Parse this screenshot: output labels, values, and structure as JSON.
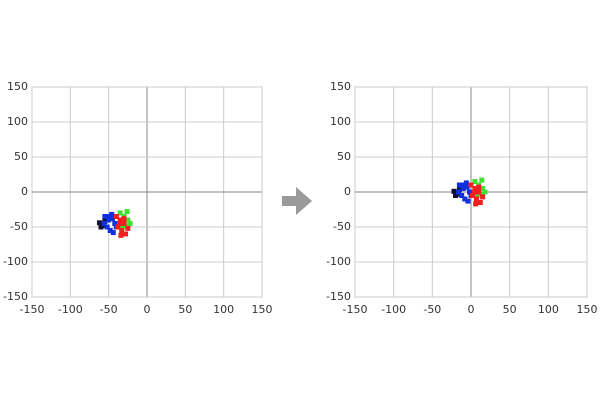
{
  "chart_data": [
    {
      "type": "scatter",
      "xlim": [
        -150,
        150
      ],
      "ylim": [
        -150,
        150
      ],
      "xticks": [
        -150,
        -100,
        -50,
        0,
        50,
        100,
        150
      ],
      "yticks": [
        -150,
        -100,
        -50,
        0,
        50,
        100,
        150
      ],
      "grid": true,
      "series": [
        {
          "color": "#111133",
          "x": [
            -62,
            -58,
            -55,
            -60
          ],
          "y": [
            -44,
            -48,
            -42,
            -50
          ]
        },
        {
          "color": "#1030e0",
          "x": [
            -55,
            -50,
            -45,
            -52,
            -48,
            -42,
            -56,
            -46,
            -40,
            -50,
            -44
          ],
          "y": [
            -35,
            -40,
            -38,
            -50,
            -55,
            -45,
            -45,
            -32,
            -50,
            -35,
            -58
          ]
        },
        {
          "color": "#40e030",
          "x": [
            -35,
            -30,
            -25,
            -28,
            -22,
            -32,
            -26
          ],
          "y": [
            -30,
            -35,
            -40,
            -48,
            -45,
            -50,
            -28
          ]
        },
        {
          "color": "#ee2020",
          "x": [
            -40,
            -35,
            -30,
            -38,
            -33,
            -28,
            -36,
            -30,
            -25,
            -34
          ],
          "y": [
            -35,
            -40,
            -45,
            -50,
            -55,
            -60,
            -45,
            -38,
            -52,
            -62
          ]
        }
      ]
    },
    {
      "type": "scatter",
      "xlim": [
        -150,
        150
      ],
      "ylim": [
        -150,
        150
      ],
      "xticks": [
        -150,
        -100,
        -50,
        0,
        50,
        100,
        150
      ],
      "yticks": [
        -150,
        -100,
        -50,
        0,
        50,
        100,
        150
      ],
      "grid": true,
      "series": [
        {
          "color": "#111133",
          "x": [
            -22,
            -18,
            -15,
            -20
          ],
          "y": [
            1,
            -3,
            3,
            -5
          ]
        },
        {
          "color": "#1030e0",
          "x": [
            -15,
            -10,
            -5,
            -12,
            -8,
            -2,
            -16,
            -6,
            0,
            -10,
            -4
          ],
          "y": [
            10,
            5,
            7,
            -5,
            -10,
            0,
            0,
            13,
            -5,
            10,
            -13
          ]
        },
        {
          "color": "#40e030",
          "x": [
            5,
            10,
            15,
            12,
            18,
            8,
            14
          ],
          "y": [
            15,
            10,
            5,
            -3,
            0,
            -5,
            17
          ]
        },
        {
          "color": "#ee2020",
          "x": [
            0,
            5,
            10,
            2,
            7,
            12,
            4,
            10,
            15,
            6
          ],
          "y": [
            10,
            5,
            0,
            -5,
            -10,
            -15,
            0,
            7,
            -7,
            -17
          ]
        }
      ]
    }
  ]
}
